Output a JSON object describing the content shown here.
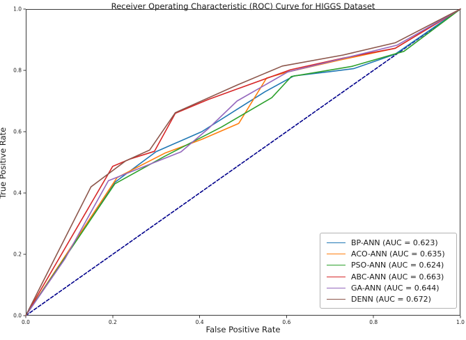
{
  "chart_data": {
    "type": "line",
    "title": "Receiver Operating Characteristic (ROC) Curve for HIGGS Dataset",
    "xlabel": "False Positive Rate",
    "ylabel": "True Positive Rate",
    "xlim": [
      0.0,
      1.0
    ],
    "ylim": [
      0.0,
      1.0
    ],
    "x_ticks": [
      "0.0",
      "0.2",
      "0.4",
      "0.6",
      "0.8",
      "1.0"
    ],
    "y_ticks": [
      "0.0",
      "0.2",
      "0.4",
      "0.6",
      "0.8",
      "1.0"
    ],
    "grid": false,
    "legend_position": "lower right",
    "series": [
      {
        "name": "chance-diagonal",
        "label": null,
        "legend": false,
        "color": "#00008b",
        "style": "dashed",
        "points": [
          [
            0,
            0
          ],
          [
            1,
            1
          ]
        ]
      },
      {
        "name": "bp-ann",
        "label": "BP-ANN (AUC = 0.623)",
        "auc": 0.623,
        "legend": true,
        "color": "#1f77b4",
        "style": "solid",
        "points": [
          [
            0,
            0
          ],
          [
            0.205,
            0.435
          ],
          [
            0.3,
            0.535
          ],
          [
            0.405,
            0.6
          ],
          [
            0.486,
            0.673
          ],
          [
            0.55,
            0.73
          ],
          [
            0.617,
            0.782
          ],
          [
            0.7,
            0.796
          ],
          [
            0.755,
            0.806
          ],
          [
            0.85,
            0.853
          ],
          [
            1,
            1
          ]
        ]
      },
      {
        "name": "aco-ann",
        "label": "ACO-ANN (AUC = 0.635)",
        "auc": 0.635,
        "legend": true,
        "color": "#ff7f0e",
        "style": "solid",
        "points": [
          [
            0,
            0
          ],
          [
            0.21,
            0.45
          ],
          [
            0.32,
            0.53
          ],
          [
            0.405,
            0.575
          ],
          [
            0.49,
            0.627
          ],
          [
            0.554,
            0.775
          ],
          [
            0.603,
            0.795
          ],
          [
            0.72,
            0.833
          ],
          [
            0.85,
            0.872
          ],
          [
            1,
            1
          ]
        ]
      },
      {
        "name": "pso-ann",
        "label": "PSO-ANN (AUC = 0.624)",
        "auc": 0.624,
        "legend": true,
        "color": "#2ca02c",
        "style": "solid",
        "points": [
          [
            0,
            0
          ],
          [
            0.205,
            0.43
          ],
          [
            0.32,
            0.52
          ],
          [
            0.45,
            0.615
          ],
          [
            0.566,
            0.711
          ],
          [
            0.611,
            0.78
          ],
          [
            0.75,
            0.813
          ],
          [
            0.87,
            0.862
          ],
          [
            1,
            1
          ]
        ]
      },
      {
        "name": "abc-ann",
        "label": "ABC-ANN (AUC = 0.663)",
        "auc": 0.663,
        "legend": true,
        "color": "#d62728",
        "style": "solid",
        "points": [
          [
            0,
            0
          ],
          [
            0.2,
            0.487
          ],
          [
            0.24,
            0.511
          ],
          [
            0.296,
            0.536
          ],
          [
            0.344,
            0.66
          ],
          [
            0.42,
            0.705
          ],
          [
            0.486,
            0.739
          ],
          [
            0.609,
            0.802
          ],
          [
            0.73,
            0.84
          ],
          [
            0.85,
            0.872
          ],
          [
            1,
            1
          ]
        ]
      },
      {
        "name": "ga-ann",
        "label": "GA-ANN (AUC = 0.644)",
        "auc": 0.644,
        "legend": true,
        "color": "#9467bd",
        "style": "solid",
        "points": [
          [
            0,
            0
          ],
          [
            0.09,
            0.185
          ],
          [
            0.19,
            0.44
          ],
          [
            0.357,
            0.534
          ],
          [
            0.42,
            0.61
          ],
          [
            0.486,
            0.7
          ],
          [
            0.603,
            0.795
          ],
          [
            0.854,
            0.882
          ],
          [
            1,
            1
          ]
        ]
      },
      {
        "name": "denn",
        "label": "DENN (AUC = 0.672)",
        "auc": 0.672,
        "legend": true,
        "color": "#8c564b",
        "style": "solid",
        "points": [
          [
            0,
            0
          ],
          [
            0.15,
            0.42
          ],
          [
            0.23,
            0.505
          ],
          [
            0.285,
            0.54
          ],
          [
            0.344,
            0.662
          ],
          [
            0.486,
            0.752
          ],
          [
            0.59,
            0.814
          ],
          [
            0.73,
            0.85
          ],
          [
            0.85,
            0.89
          ],
          [
            1,
            1
          ]
        ]
      }
    ]
  }
}
